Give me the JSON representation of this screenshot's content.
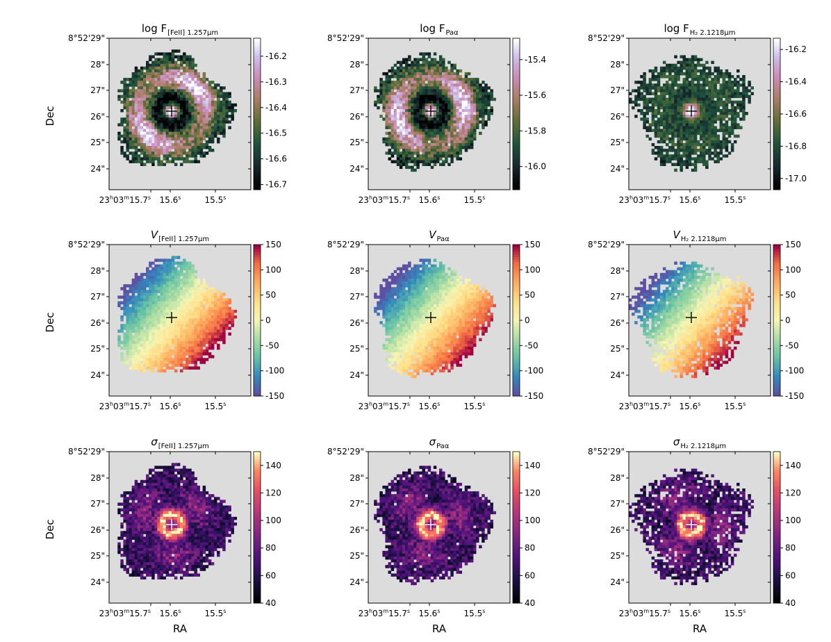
{
  "figure": {
    "y_axis_label": "Dec",
    "x_axis_label": "RA",
    "columns": [
      "[FeII] 1.257μm",
      "Paα",
      "H₂ 2.1218μm"
    ]
  },
  "chart_data": [
    {
      "type": "heatmap",
      "row": 0,
      "col": 0,
      "title": "log F[FeII] 1.257μm",
      "title_main": "log F",
      "title_sub": "[FeII] 1.257μm",
      "quantity": "flux",
      "colormap": "cubehelix",
      "xlabel": "",
      "ylabel": "Dec",
      "ra_ticks": [
        "23h03m15.7s",
        "15.6s",
        "15.5s"
      ],
      "dec_ticks": [
        "8°52'29\"",
        "28\"",
        "27\"",
        "26\"",
        "25\"",
        "24\""
      ],
      "cbar_ticks": [
        "-16.2",
        "-16.3",
        "-16.4",
        "-16.5",
        "-16.6",
        "-16.7"
      ],
      "cbar_range": [
        -16.72,
        -16.13
      ],
      "nucleus_marker": "+",
      "map_shape": "ring"
    },
    {
      "type": "heatmap",
      "row": 0,
      "col": 1,
      "title": "log F Paα",
      "title_main": "log F",
      "title_sub": "Paα",
      "quantity": "flux",
      "colormap": "cubehelix",
      "xlabel": "",
      "ylabel": "",
      "ra_ticks": [
        "23h03m15.7s",
        "15.6s",
        "15.5s"
      ],
      "dec_ticks": [
        "8°52'29\"",
        "28\"",
        "27\"",
        "26\"",
        "25\"",
        "24\""
      ],
      "cbar_ticks": [
        "-15.4",
        "-15.6",
        "-15.8",
        "-16.0"
      ],
      "cbar_range": [
        -16.13,
        -15.28
      ],
      "nucleus_marker": "+",
      "map_shape": "ring"
    },
    {
      "type": "heatmap",
      "row": 0,
      "col": 2,
      "title": "log F H2 2.1218μm",
      "title_main": "log F",
      "title_sub": "H₂ 2.1218μm",
      "quantity": "flux",
      "colormap": "cubehelix",
      "xlabel": "",
      "ylabel": "",
      "ra_ticks": [
        "23h03m15.7s",
        "15.6s",
        "15.5s"
      ],
      "dec_ticks": [
        "8°52'29\"",
        "28\"",
        "27\"",
        "26\"",
        "25\"",
        "24\""
      ],
      "cbar_ticks": [
        "-16.2",
        "-16.4",
        "-16.6",
        "-16.8",
        "-17.0"
      ],
      "cbar_range": [
        -17.07,
        -16.13
      ],
      "nucleus_marker": "+",
      "map_shape": "core"
    },
    {
      "type": "heatmap",
      "row": 1,
      "col": 0,
      "title": "V[FeII] 1.257μm",
      "title_main": "V",
      "title_sub": "[FeII] 1.257μm",
      "quantity": "velocity",
      "colormap": "spectral_r",
      "xlabel": "",
      "ylabel": "Dec",
      "ra_ticks": [
        "23h03m15.7s",
        "15.6s",
        "15.5s"
      ],
      "dec_ticks": [
        "8°52'29\"",
        "28\"",
        "27\"",
        "26\"",
        "25\"",
        "24\""
      ],
      "cbar_ticks": [
        "150",
        "100",
        "50",
        "0",
        "-50",
        "-100",
        "-150"
      ],
      "cbar_range": [
        -150,
        150
      ],
      "nucleus_marker": "+",
      "map_shape": "rotation"
    },
    {
      "type": "heatmap",
      "row": 1,
      "col": 1,
      "title": "V Paα",
      "title_main": "V",
      "title_sub": "Paα",
      "quantity": "velocity",
      "colormap": "spectral_r",
      "xlabel": "",
      "ylabel": "",
      "ra_ticks": [
        "23h03m15.7s",
        "15.6s",
        "15.5s"
      ],
      "dec_ticks": [
        "8°52'29\"",
        "28\"",
        "27\"",
        "26\"",
        "25\"",
        "24\""
      ],
      "cbar_ticks": [
        "150",
        "100",
        "50",
        "0",
        "-50",
        "-100",
        "-150"
      ],
      "cbar_range": [
        -150,
        150
      ],
      "nucleus_marker": "+",
      "map_shape": "rotation"
    },
    {
      "type": "heatmap",
      "row": 1,
      "col": 2,
      "title": "V H2 2.1218μm",
      "title_main": "V",
      "title_sub": "H₂ 2.1218μm",
      "quantity": "velocity",
      "colormap": "spectral_r",
      "xlabel": "",
      "ylabel": "",
      "ra_ticks": [
        "23h03m15.7s",
        "15.6s",
        "15.5s"
      ],
      "dec_ticks": [
        "8°52'29\"",
        "28\"",
        "27\"",
        "26\"",
        "25\"",
        "24\""
      ],
      "cbar_ticks": [
        "150",
        "100",
        "50",
        "0",
        "-50",
        "-100",
        "-150"
      ],
      "cbar_range": [
        -150,
        150
      ],
      "nucleus_marker": "+",
      "map_shape": "rotation"
    },
    {
      "type": "heatmap",
      "row": 2,
      "col": 0,
      "title": "σ[FeII] 1.257μm",
      "title_main": "σ",
      "title_sub": "[FeII] 1.257μm",
      "quantity": "dispersion",
      "colormap": "magma",
      "xlabel": "RA",
      "ylabel": "Dec",
      "ra_ticks": [
        "23h03m15.7s",
        "15.6s",
        "15.5s"
      ],
      "dec_ticks": [
        "8°52'29\"",
        "28\"",
        "27\"",
        "26\"",
        "25\"",
        "24\""
      ],
      "cbar_ticks": [
        "140",
        "120",
        "100",
        "80",
        "60",
        "40"
      ],
      "cbar_range": [
        40,
        150
      ],
      "nucleus_marker": "+",
      "map_shape": "nuclear-ring"
    },
    {
      "type": "heatmap",
      "row": 2,
      "col": 1,
      "title": "σ Paα",
      "title_main": "σ",
      "title_sub": "Paα",
      "quantity": "dispersion",
      "colormap": "magma",
      "xlabel": "RA",
      "ylabel": "",
      "ra_ticks": [
        "23h03m15.7s",
        "15.6s",
        "15.5s"
      ],
      "dec_ticks": [
        "8°52'29\"",
        "28\"",
        "27\"",
        "26\"",
        "25\"",
        "24\""
      ],
      "cbar_ticks": [
        "140",
        "120",
        "100",
        "80",
        "60",
        "40"
      ],
      "cbar_range": [
        40,
        150
      ],
      "nucleus_marker": "+",
      "map_shape": "nuclear-ring"
    },
    {
      "type": "heatmap",
      "row": 2,
      "col": 2,
      "title": "σ H2 2.1218μm",
      "title_main": "σ",
      "title_sub": "H₂ 2.1218μm",
      "quantity": "dispersion",
      "colormap": "magma",
      "xlabel": "RA",
      "ylabel": "",
      "ra_ticks": [
        "23h03m15.7s",
        "15.6s",
        "15.5s"
      ],
      "dec_ticks": [
        "8°52'29\"",
        "28\"",
        "27\"",
        "26\"",
        "25\"",
        "24\""
      ],
      "cbar_ticks": [
        "140",
        "120",
        "100",
        "80",
        "60",
        "40"
      ],
      "cbar_range": [
        40,
        150
      ],
      "nucleus_marker": "+",
      "map_shape": "nuclear-ring"
    }
  ]
}
